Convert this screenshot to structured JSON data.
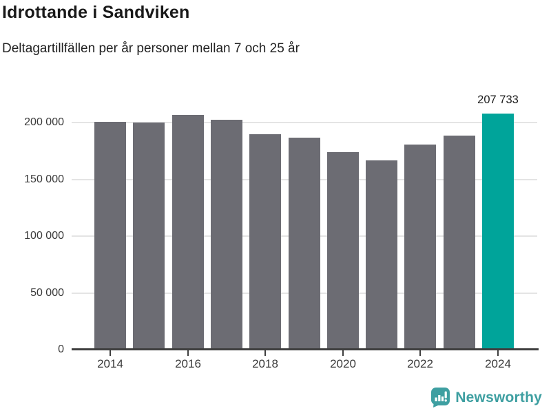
{
  "header": {
    "title": "Idrottande i Sandviken",
    "subtitle": "Deltagartillfällen per år personer mellan 7 och 25 år"
  },
  "chart_data": {
    "type": "bar",
    "title": "Idrottande i Sandviken",
    "subtitle": "Deltagartillfällen per år personer mellan 7 och 25 år",
    "categories": [
      "2014",
      "2015",
      "2016",
      "2017",
      "2018",
      "2019",
      "2020",
      "2021",
      "2022",
      "2023",
      "2024"
    ],
    "values": [
      200400,
      200000,
      206900,
      202300,
      189700,
      186600,
      174100,
      166800,
      180800,
      188500,
      207733
    ],
    "highlight_index": 10,
    "highlight_value_label": "207 733",
    "xlabel": "",
    "ylabel": "",
    "ylim": [
      0,
      215000
    ],
    "yticks": [
      0,
      50000,
      100000,
      150000,
      200000
    ],
    "ytick_labels": [
      "0",
      "50 000",
      "100 000",
      "150 000",
      "200 000"
    ],
    "xtick_labels": [
      "2014",
      "2016",
      "2018",
      "2020",
      "2022",
      "2024"
    ],
    "xtick_every": 2,
    "grid": true,
    "legend": false,
    "colors": {
      "bar": "#6C6C73",
      "highlight": "#00A49A",
      "gridline": "#E4E4E4",
      "axis": "#3E3E3E",
      "tick_text": "#3a3a3a"
    }
  },
  "footer": {
    "brand": "Newsworthy",
    "logo_icon": "bar-chart-speech-bubble-icon",
    "brand_color": "#3E9FA1"
  }
}
